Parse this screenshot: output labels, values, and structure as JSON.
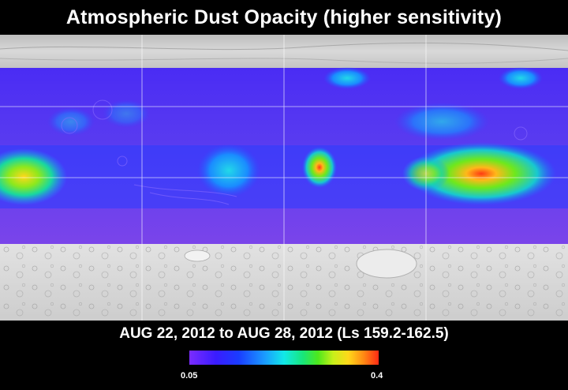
{
  "title": "Atmospheric Dust Opacity (higher sensitivity)",
  "date_range": "AUG 22, 2012 to AUG 28, 2012 (Ls 159.2-162.5)",
  "colorbar": {
    "min_label": "0.05",
    "max_label": "0.4",
    "min_value": 0.05,
    "max_value": 0.4
  },
  "colors": {
    "background": "#000000",
    "text": "#ffffff",
    "polar_terrain": "#cfcfcf",
    "low_opacity": "#5a3cf0",
    "high_opacity": "#ff3a14"
  }
}
